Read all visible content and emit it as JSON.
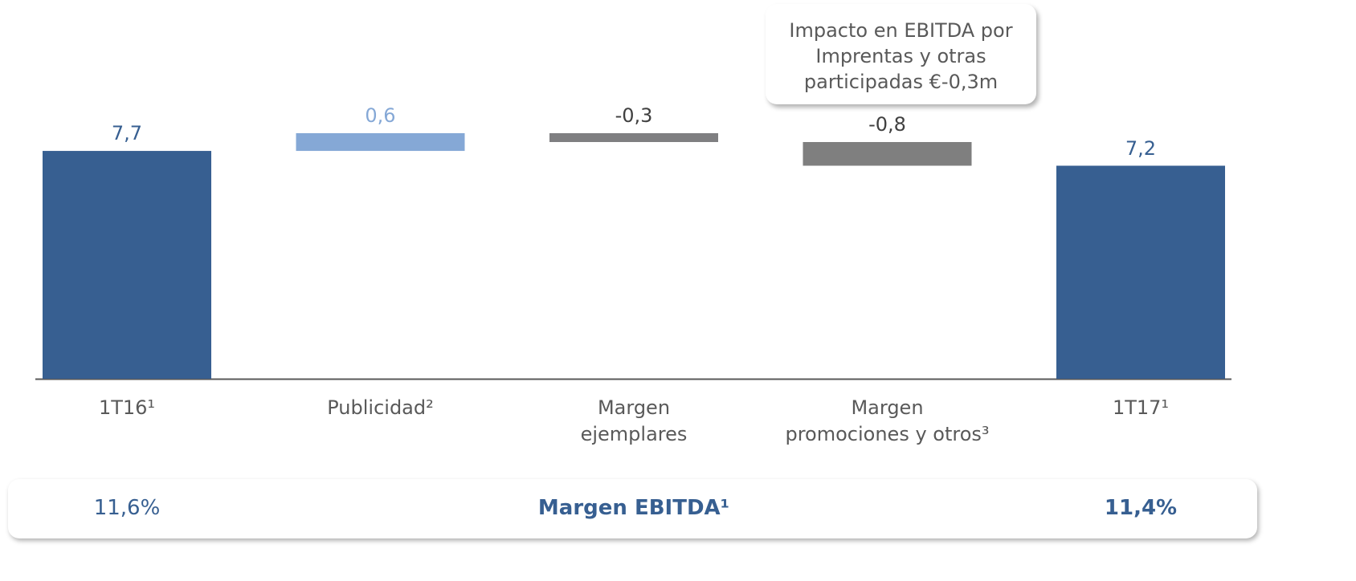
{
  "chart_data": {
    "type": "waterfall",
    "categories": [
      "1T16¹",
      "Publicidad²",
      "Margen\nejemplares",
      "Margen\npromociones y otros³",
      "1T17¹"
    ],
    "values": [
      7.7,
      0.6,
      -0.3,
      -0.8,
      7.2
    ],
    "value_labels": [
      "7,7",
      "0,6",
      "-0,3",
      "-0,8",
      "7,2"
    ],
    "measure": [
      "absolute",
      "relative",
      "relative",
      "relative",
      "absolute"
    ],
    "colors": [
      "#375f91",
      "#85a8d6",
      "#7f7f81",
      "#7f7f7f",
      "#375f91"
    ],
    "label_colors": [
      "#375f91",
      "#85a8d6",
      "#404040",
      "#404040",
      "#375f91"
    ],
    "ylim": [
      0,
      8
    ],
    "annotation": "Impacto en EBITDA por\nImprentas y otras\nparticipadas €-0,3m",
    "footer": {
      "label": "Margen EBITDA¹",
      "first": "11,6%",
      "last": "11,4%"
    }
  }
}
